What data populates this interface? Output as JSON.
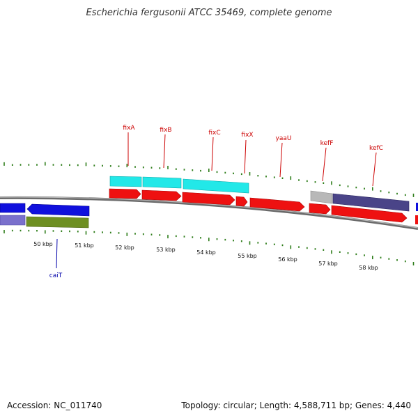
{
  "title": "Escherichia fergusonii ATCC 35469, complete genome",
  "footer": {
    "accession": "Accession: NC_011740",
    "summary": "Topology: circular; Length: 4,588,711 bp; Genes: 4,440"
  },
  "colors": {
    "backbone": "#8a8a8a",
    "ticks": "#2e7d1a",
    "cds_red": "#ee1111",
    "cyan": "#22e8e8",
    "blue": "#1010dd",
    "lavender": "#7a70cc",
    "olive": "#6e8f22",
    "slate": "#4a4488",
    "gray": "#b8b8b8",
    "label_red": "#cc0000",
    "label_blue": "#0000aa"
  },
  "scale": {
    "unit": "kbp",
    "labels": [
      "50 kbp",
      "51 kbp",
      "52 kbp",
      "53 kbp",
      "54 kbp",
      "55 kbp",
      "56 kbp",
      "57 kbp",
      "58 kbp"
    ]
  },
  "gene_labels_top": [
    "fixA",
    "fixB",
    "fixC",
    "fixX",
    "yaaU",
    "kefF",
    "kefC"
  ],
  "gene_labels_bottom": [
    "caiT"
  ]
}
